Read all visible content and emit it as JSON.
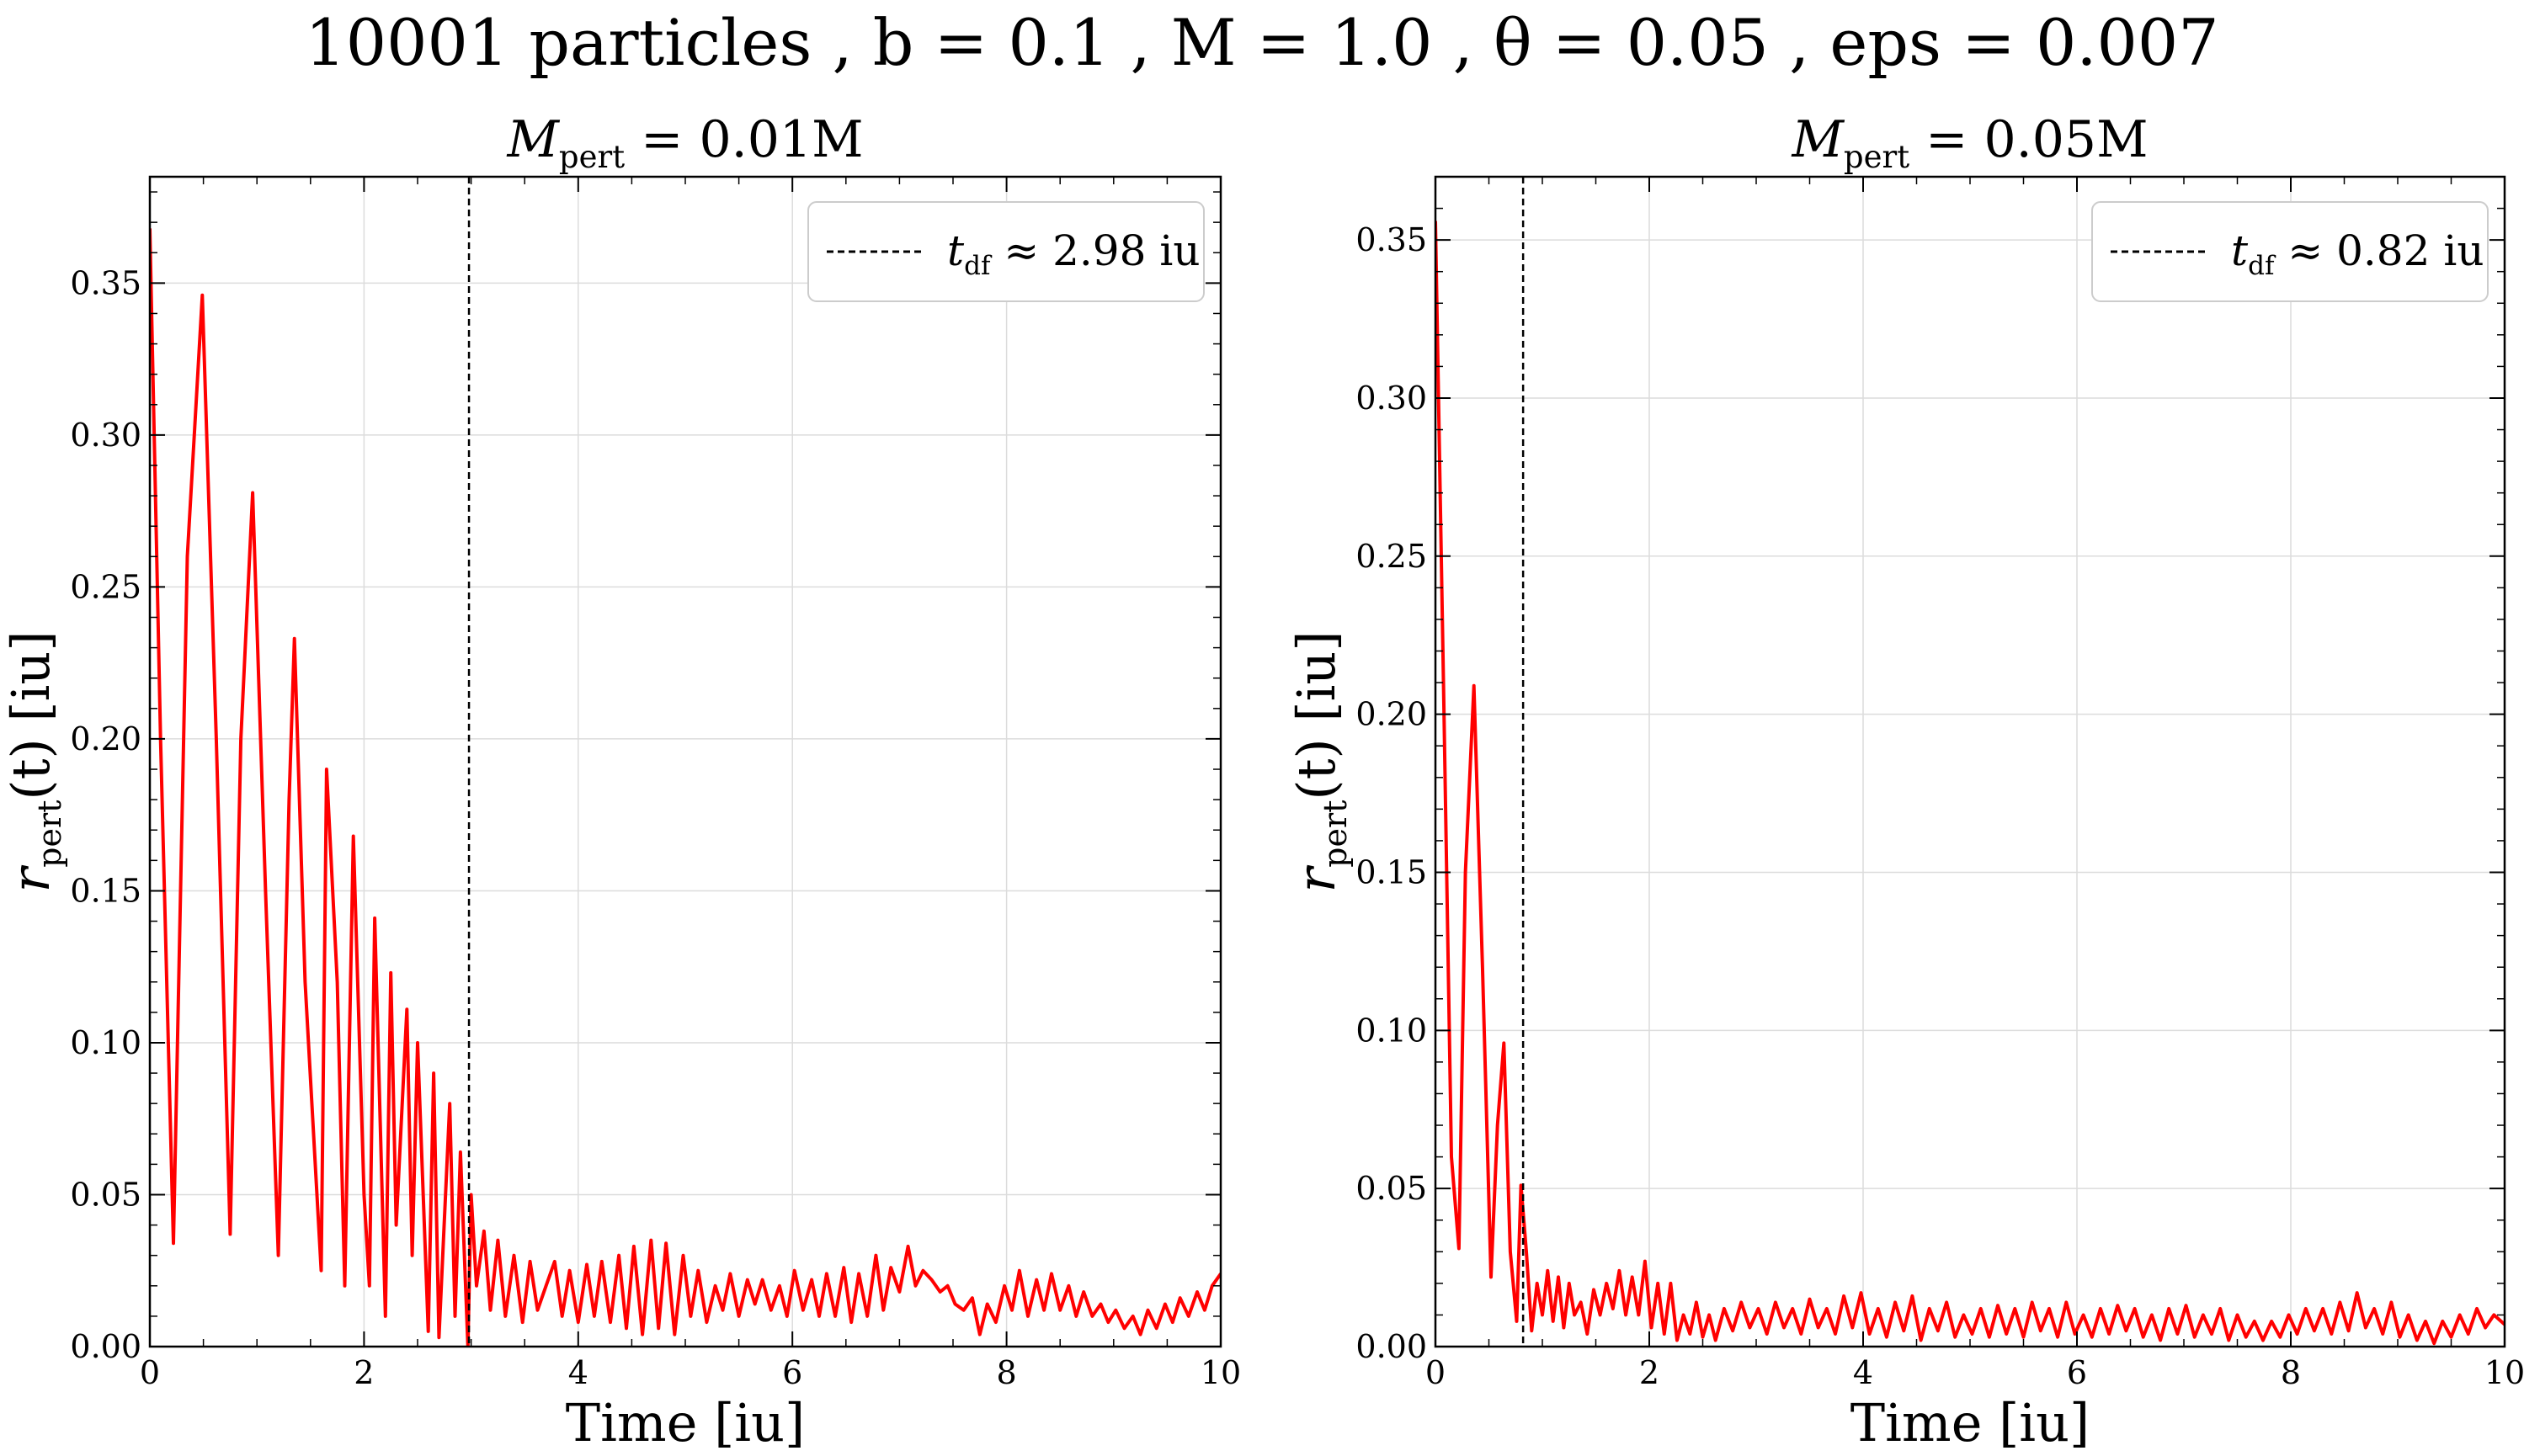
{
  "figure": {
    "title": "10001 particles , b = 0.1 , M = 1.0 , θ = 0.05 , eps = 0.007"
  },
  "colors": {
    "series": "#ff0000",
    "reference": "#000000",
    "grid": "#dcdcdc"
  },
  "chart_data": [
    {
      "type": "line",
      "title": "M_pert = 0.01M",
      "title_main": "M",
      "title_sub": "pert",
      "title_rest": " = 0.01M",
      "xlabel": "Time [iu]",
      "ylabel": "r_pert(t) [iu]",
      "ylabel_main": "r",
      "ylabel_sub": "pert",
      "ylabel_rest": "(t) [iu]",
      "xlim": [
        0,
        10
      ],
      "ylim": [
        0,
        0.385
      ],
      "xticks": [
        0,
        2,
        4,
        6,
        8,
        10
      ],
      "yticks": [
        0.0,
        0.05,
        0.1,
        0.15,
        0.2,
        0.25,
        0.3,
        0.35
      ],
      "ytick_labels": [
        "0.00",
        "0.05",
        "0.10",
        "0.15",
        "0.20",
        "0.25",
        "0.30",
        "0.35"
      ],
      "grid": true,
      "legend_position": "top-right",
      "reference_line": {
        "x": 2.98,
        "style": "dashed",
        "label_main": "t",
        "label_sub": "df",
        "label_rest": " ≈ 2.98 iu"
      },
      "series": [
        {
          "style": "solid",
          "x": [
            0.0,
            0.1,
            0.22,
            0.35,
            0.49,
            0.62,
            0.75,
            0.85,
            0.96,
            1.08,
            1.2,
            1.3,
            1.35,
            1.45,
            1.6,
            1.65,
            1.75,
            1.82,
            1.9,
            2.0,
            2.05,
            2.1,
            2.2,
            2.25,
            2.3,
            2.4,
            2.45,
            2.5,
            2.6,
            2.65,
            2.7,
            2.8,
            2.85,
            2.9,
            2.97,
            3.0,
            3.05,
            3.12,
            3.18,
            3.25,
            3.32,
            3.4,
            3.48,
            3.55,
            3.62,
            3.7,
            3.78,
            3.85,
            3.92,
            4.0,
            4.08,
            4.15,
            4.22,
            4.3,
            4.38,
            4.45,
            4.52,
            4.6,
            4.68,
            4.75,
            4.82,
            4.9,
            4.98,
            5.05,
            5.12,
            5.2,
            5.28,
            5.35,
            5.42,
            5.5,
            5.58,
            5.65,
            5.72,
            5.8,
            5.88,
            5.95,
            6.02,
            6.1,
            6.18,
            6.25,
            6.32,
            6.4,
            6.48,
            6.55,
            6.62,
            6.7,
            6.78,
            6.85,
            6.92,
            7.0,
            7.08,
            7.15,
            7.22,
            7.3,
            7.38,
            7.45,
            7.52,
            7.6,
            7.68,
            7.75,
            7.82,
            7.9,
            7.98,
            8.05,
            8.12,
            8.2,
            8.28,
            8.35,
            8.42,
            8.5,
            8.58,
            8.65,
            8.72,
            8.8,
            8.88,
            8.95,
            9.02,
            9.1,
            9.18,
            9.25,
            9.32,
            9.4,
            9.48,
            9.55,
            9.62,
            9.7,
            9.78,
            9.85,
            9.92,
            10.0
          ],
          "y": [
            0.368,
            0.2,
            0.034,
            0.26,
            0.346,
            0.2,
            0.037,
            0.2,
            0.281,
            0.15,
            0.03,
            0.18,
            0.233,
            0.12,
            0.025,
            0.19,
            0.12,
            0.02,
            0.168,
            0.05,
            0.02,
            0.141,
            0.01,
            0.123,
            0.04,
            0.111,
            0.03,
            0.1,
            0.005,
            0.09,
            0.003,
            0.08,
            0.01,
            0.064,
            0.0,
            0.05,
            0.02,
            0.038,
            0.012,
            0.035,
            0.01,
            0.03,
            0.008,
            0.028,
            0.012,
            0.02,
            0.028,
            0.01,
            0.025,
            0.008,
            0.027,
            0.01,
            0.028,
            0.008,
            0.03,
            0.006,
            0.033,
            0.004,
            0.035,
            0.006,
            0.034,
            0.004,
            0.03,
            0.01,
            0.025,
            0.008,
            0.02,
            0.012,
            0.024,
            0.01,
            0.022,
            0.014,
            0.022,
            0.012,
            0.02,
            0.01,
            0.025,
            0.012,
            0.022,
            0.01,
            0.024,
            0.01,
            0.026,
            0.008,
            0.024,
            0.01,
            0.03,
            0.012,
            0.026,
            0.018,
            0.033,
            0.02,
            0.025,
            0.022,
            0.018,
            0.02,
            0.014,
            0.012,
            0.016,
            0.004,
            0.014,
            0.008,
            0.02,
            0.012,
            0.025,
            0.01,
            0.022,
            0.012,
            0.024,
            0.012,
            0.02,
            0.01,
            0.018,
            0.01,
            0.014,
            0.008,
            0.012,
            0.006,
            0.01,
            0.004,
            0.012,
            0.006,
            0.014,
            0.008,
            0.016,
            0.01,
            0.018,
            0.012,
            0.02,
            0.024
          ]
        }
      ]
    },
    {
      "type": "line",
      "title": "M_pert = 0.05M",
      "title_main": "M",
      "title_sub": "pert",
      "title_rest": " = 0.05M",
      "xlabel": "Time [iu]",
      "ylabel": "r_pert(t) [iu]",
      "ylabel_main": "r",
      "ylabel_sub": "pert",
      "ylabel_rest": "(t) [iu]",
      "xlim": [
        0,
        10
      ],
      "ylim": [
        0,
        0.37
      ],
      "xticks": [
        0,
        2,
        4,
        6,
        8,
        10
      ],
      "yticks": [
        0.0,
        0.05,
        0.1,
        0.15,
        0.2,
        0.25,
        0.3,
        0.35
      ],
      "ytick_labels": [
        "0.00",
        "0.05",
        "0.10",
        "0.15",
        "0.20",
        "0.25",
        "0.30",
        "0.35"
      ],
      "grid": true,
      "legend_position": "top-right",
      "reference_line": {
        "x": 0.82,
        "style": "dashed",
        "label_main": "t",
        "label_sub": "df",
        "label_rest": " ≈ 0.82 iu"
      },
      "series": [
        {
          "style": "solid",
          "x": [
            0.0,
            0.08,
            0.15,
            0.22,
            0.28,
            0.36,
            0.44,
            0.52,
            0.58,
            0.64,
            0.7,
            0.76,
            0.8,
            0.85,
            0.9,
            0.95,
            1.0,
            1.05,
            1.1,
            1.15,
            1.2,
            1.25,
            1.3,
            1.36,
            1.42,
            1.48,
            1.54,
            1.6,
            1.66,
            1.72,
            1.78,
            1.84,
            1.9,
            1.96,
            2.02,
            2.08,
            2.14,
            2.2,
            2.26,
            2.32,
            2.38,
            2.44,
            2.5,
            2.56,
            2.62,
            2.7,
            2.78,
            2.86,
            2.94,
            3.02,
            3.1,
            3.18,
            3.26,
            3.34,
            3.42,
            3.5,
            3.58,
            3.66,
            3.74,
            3.82,
            3.9,
            3.98,
            4.06,
            4.14,
            4.22,
            4.3,
            4.38,
            4.46,
            4.54,
            4.62,
            4.7,
            4.78,
            4.86,
            4.94,
            5.02,
            5.1,
            5.18,
            5.26,
            5.34,
            5.42,
            5.5,
            5.58,
            5.66,
            5.74,
            5.82,
            5.9,
            5.98,
            6.06,
            6.14,
            6.22,
            6.3,
            6.38,
            6.46,
            6.54,
            6.62,
            6.7,
            6.78,
            6.86,
            6.94,
            7.02,
            7.1,
            7.18,
            7.26,
            7.34,
            7.42,
            7.5,
            7.58,
            7.66,
            7.74,
            7.82,
            7.9,
            7.98,
            8.06,
            8.14,
            8.22,
            8.3,
            8.38,
            8.46,
            8.54,
            8.62,
            8.7,
            8.78,
            8.86,
            8.94,
            9.02,
            9.1,
            9.18,
            9.26,
            9.34,
            9.42,
            9.5,
            9.58,
            9.66,
            9.74,
            9.82,
            9.9,
            10.0
          ],
          "y": [
            0.356,
            0.2,
            0.06,
            0.031,
            0.15,
            0.209,
            0.12,
            0.022,
            0.07,
            0.096,
            0.03,
            0.008,
            0.051,
            0.03,
            0.005,
            0.02,
            0.01,
            0.024,
            0.008,
            0.022,
            0.006,
            0.02,
            0.01,
            0.014,
            0.004,
            0.018,
            0.01,
            0.02,
            0.012,
            0.024,
            0.01,
            0.022,
            0.01,
            0.027,
            0.006,
            0.02,
            0.004,
            0.02,
            0.002,
            0.01,
            0.004,
            0.014,
            0.003,
            0.01,
            0.002,
            0.012,
            0.005,
            0.014,
            0.006,
            0.012,
            0.004,
            0.014,
            0.006,
            0.012,
            0.004,
            0.015,
            0.006,
            0.012,
            0.004,
            0.016,
            0.006,
            0.017,
            0.004,
            0.012,
            0.003,
            0.014,
            0.005,
            0.016,
            0.002,
            0.012,
            0.005,
            0.014,
            0.003,
            0.01,
            0.004,
            0.012,
            0.003,
            0.013,
            0.004,
            0.012,
            0.003,
            0.014,
            0.005,
            0.012,
            0.003,
            0.014,
            0.004,
            0.01,
            0.003,
            0.012,
            0.004,
            0.013,
            0.005,
            0.012,
            0.003,
            0.01,
            0.002,
            0.012,
            0.004,
            0.013,
            0.003,
            0.01,
            0.004,
            0.012,
            0.002,
            0.01,
            0.003,
            0.008,
            0.002,
            0.008,
            0.003,
            0.01,
            0.004,
            0.012,
            0.005,
            0.012,
            0.004,
            0.014,
            0.005,
            0.017,
            0.006,
            0.012,
            0.004,
            0.014,
            0.003,
            0.01,
            0.002,
            0.008,
            0.001,
            0.008,
            0.003,
            0.01,
            0.004,
            0.012,
            0.006,
            0.01,
            0.007
          ]
        }
      ]
    }
  ]
}
